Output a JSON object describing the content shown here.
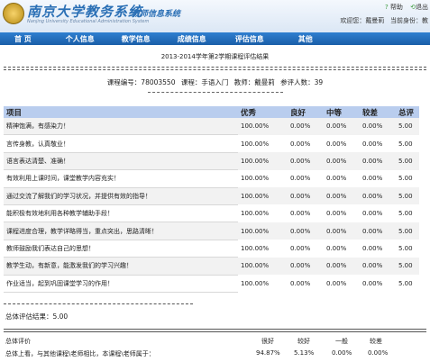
{
  "header": {
    "title": "南京大学教务系统",
    "subtitle": "教师信息系统",
    "english_title": "Nanjing University Educational Administration System",
    "help": "帮助",
    "exit": "退出",
    "welcome_label": "欢迎您：",
    "user": "戴曼莉",
    "role_label": "当前身份：教"
  },
  "nav": [
    "首 页",
    "个人信息",
    "教学信息",
    "成绩信息",
    "评估信息",
    "其他"
  ],
  "report": {
    "title": "2013-2014学年第2学期课程评估结果",
    "meta": {
      "course_no": "课程编号：78003550",
      "course": "课程：手语入门",
      "teacher": "教师：戴曼莉",
      "count": "参评人数：39"
    },
    "headers": [
      "项目",
      "优秀",
      "良好",
      "中等",
      "较差",
      "总评"
    ],
    "rows": [
      {
        "item": "精神饱满，有感染力！",
        "v": [
          "100.00%",
          "0.00%",
          "0.00%",
          "0.00%",
          "5.00"
        ]
      },
      {
        "item": "言传身教，认真敬业！",
        "v": [
          "100.00%",
          "0.00%",
          "0.00%",
          "0.00%",
          "5.00"
        ]
      },
      {
        "item": "语言表达清楚、准确！",
        "v": [
          "100.00%",
          "0.00%",
          "0.00%",
          "0.00%",
          "5.00"
        ]
      },
      {
        "item": "有效利用上课时间，课堂教学内容充实！",
        "v": [
          "100.00%",
          "0.00%",
          "0.00%",
          "0.00%",
          "5.00"
        ]
      },
      {
        "item": "通过交流了解我们的学习状况，并提供有效的指导！",
        "v": [
          "100.00%",
          "0.00%",
          "0.00%",
          "0.00%",
          "5.00"
        ]
      },
      {
        "item": "能积极有效地利用各种教学辅助手段！",
        "v": [
          "100.00%",
          "0.00%",
          "0.00%",
          "0.00%",
          "5.00"
        ]
      },
      {
        "item": "课程进度合理，教学详略得当，重点突出，思路清晰！",
        "v": [
          "100.00%",
          "0.00%",
          "0.00%",
          "0.00%",
          "5.00"
        ]
      },
      {
        "item": "教师鼓励我们表达自己的思想！",
        "v": [
          "100.00%",
          "0.00%",
          "0.00%",
          "0.00%",
          "5.00"
        ]
      },
      {
        "item": "教学生动，有新意，能激发我们的学习兴趣！",
        "v": [
          "100.00%",
          "0.00%",
          "0.00%",
          "0.00%",
          "5.00"
        ]
      },
      {
        "item": "作业适当，起到巩固课堂学习的作用！",
        "v": [
          "100.00%",
          "0.00%",
          "0.00%",
          "0.00%",
          "5.00"
        ]
      }
    ],
    "total": "总体评估结果：5.00",
    "overall": {
      "label": "总体评价",
      "cols": [
        "很好",
        "较好",
        "一般",
        "较差"
      ],
      "row_label": "总体上看，与其他课程\\老师相比，本课程\\老师属于：",
      "values": [
        "94.87%",
        "5.13%",
        "0.00%",
        "0.00%"
      ]
    }
  }
}
